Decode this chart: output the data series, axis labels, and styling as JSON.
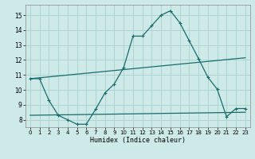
{
  "xlabel": "Humidex (Indice chaleur)",
  "xlim": [
    -0.5,
    23.5
  ],
  "ylim": [
    7.5,
    15.7
  ],
  "yticks": [
    8,
    9,
    10,
    11,
    12,
    13,
    14,
    15
  ],
  "xticks": [
    0,
    1,
    2,
    3,
    4,
    5,
    6,
    7,
    8,
    9,
    10,
    11,
    12,
    13,
    14,
    15,
    16,
    17,
    18,
    19,
    20,
    21,
    22,
    23
  ],
  "bg_color": "#ceeae8",
  "grid_color": "#aed4d2",
  "line_color": "#1a6b6b",
  "main_x": [
    0,
    1,
    2,
    3,
    4,
    5,
    6,
    7,
    8,
    9,
    10,
    11,
    12,
    13,
    14,
    15,
    16,
    17,
    18,
    19,
    20,
    21,
    22,
    23
  ],
  "main_y": [
    10.75,
    10.75,
    9.3,
    8.3,
    8.0,
    7.7,
    7.7,
    8.7,
    9.8,
    10.4,
    11.5,
    13.6,
    13.6,
    14.3,
    15.0,
    15.3,
    14.5,
    13.3,
    12.1,
    10.85,
    10.05,
    8.2,
    8.75,
    8.75
  ],
  "upper_trend_x": [
    0,
    23
  ],
  "upper_trend_y": [
    10.75,
    12.15
  ],
  "lower_trend_x": [
    0,
    23
  ],
  "lower_trend_y": [
    8.3,
    8.5
  ]
}
